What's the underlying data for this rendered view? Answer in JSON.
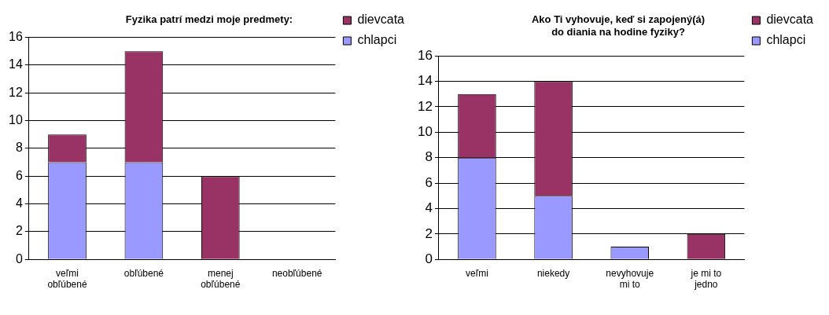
{
  "chart_data": [
    {
      "type": "bar",
      "title": "Fyzika patrí medzi moje predmety:",
      "categories": [
        "veľmi obľúbené",
        "obľúbené",
        "menej obľúbené",
        "neobľúbené"
      ],
      "stacked": true,
      "series": [
        {
          "name": "chlapci",
          "color": "#9999ff",
          "values": [
            7,
            7,
            0,
            0
          ]
        },
        {
          "name": "dievcata",
          "color": "#993366",
          "values": [
            2,
            8,
            6,
            0
          ]
        }
      ],
      "ylim": [
        0,
        16
      ],
      "yticks": [
        0,
        2,
        4,
        6,
        8,
        10,
        12,
        14,
        16
      ],
      "grid": "y",
      "legend": "top right"
    },
    {
      "type": "bar",
      "title": "Ako Ti vyhovuje, keď si zapojený(á) do diania na hodine fyziky?",
      "categories": [
        "veľmi",
        "niekedy",
        "nevyhovuje mi to",
        "je mi to jedno"
      ],
      "stacked": true,
      "series": [
        {
          "name": "chlapci",
          "color": "#9999ff",
          "values": [
            8,
            5,
            1,
            0
          ]
        },
        {
          "name": "dievcata",
          "color": "#993366",
          "values": [
            5,
            9,
            0,
            2
          ]
        }
      ],
      "ylim": [
        0,
        16
      ],
      "yticks": [
        0,
        2,
        4,
        6,
        8,
        10,
        12,
        14,
        16
      ],
      "grid": "y",
      "legend": "top right"
    }
  ]
}
